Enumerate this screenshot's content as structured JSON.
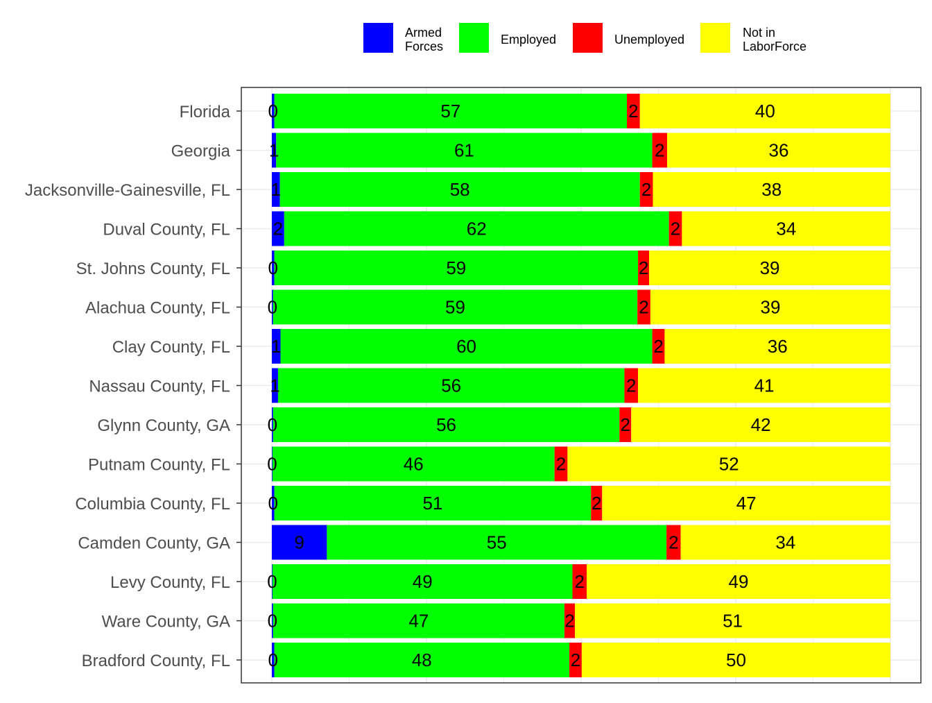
{
  "chart_data": {
    "type": "bar",
    "orientation": "horizontal",
    "stacked": true,
    "title": "",
    "xlabel": "",
    "ylabel": "",
    "xlim": [
      0,
      100
    ],
    "grid": true,
    "legend_position": "top",
    "categories": [
      "Florida",
      "Georgia",
      "Jacksonville-Gainesville, FL",
      "Duval County, FL",
      "St. Johns County, FL",
      "Alachua County, FL",
      "Clay County, FL",
      "Nassau County, FL",
      "Glynn County, GA",
      "Putnam County, FL",
      "Columbia County, FL",
      "Camden County, GA",
      "Levy County, FL",
      "Ware County, GA",
      "Bradford County, FL"
    ],
    "series": [
      {
        "name": "Armed Forces",
        "legend_lines": [
          "Armed",
          "Forces"
        ],
        "color": "#0000FF",
        "values": [
          0.4,
          0.7,
          1.3,
          2.0,
          0.4,
          0.2,
          1.4,
          1.0,
          0.2,
          0.1,
          0.4,
          8.9,
          0.1,
          0.2,
          0.4
        ],
        "labels": [
          "0",
          "1",
          "1",
          "2",
          "0",
          "0",
          "1",
          "1",
          "0",
          "0",
          "0",
          "9",
          "0",
          "0",
          "0"
        ]
      },
      {
        "name": "Employed",
        "legend_lines": [
          "Employed"
        ],
        "color": "#00FF00",
        "values": [
          57.0,
          60.8,
          58.2,
          62.2,
          58.8,
          58.9,
          60.1,
          56.0,
          56.0,
          45.6,
          51.2,
          54.9,
          48.5,
          47.1,
          47.7
        ],
        "labels": [
          "57",
          "61",
          "58",
          "62",
          "59",
          "59",
          "60",
          "56",
          "56",
          "46",
          "51",
          "55",
          "49",
          "47",
          "48"
        ]
      },
      {
        "name": "Unemployed",
        "legend_lines": [
          "Unemployed"
        ],
        "color": "#FF0000",
        "values": [
          2.1,
          2.4,
          2.1,
          2.1,
          1.8,
          2.1,
          2.0,
          2.2,
          1.9,
          2.1,
          1.8,
          2.3,
          2.3,
          1.7,
          2.0
        ],
        "labels": [
          "2",
          "2",
          "2",
          "2",
          "2",
          "2",
          "2",
          "2",
          "2",
          "2",
          "2",
          "2",
          "2",
          "2",
          "2"
        ]
      },
      {
        "name": "Not in LaborForce",
        "legend_lines": [
          "Not in",
          "LaborForce"
        ],
        "color": "#FFFF00",
        "values": [
          40.5,
          36.1,
          38.4,
          33.7,
          39.0,
          38.8,
          36.5,
          40.8,
          41.9,
          52.2,
          46.6,
          33.9,
          49.1,
          51.0,
          49.9
        ],
        "labels": [
          "40",
          "36",
          "38",
          "34",
          "39",
          "39",
          "36",
          "41",
          "42",
          "52",
          "47",
          "34",
          "49",
          "51",
          "50"
        ]
      }
    ]
  }
}
